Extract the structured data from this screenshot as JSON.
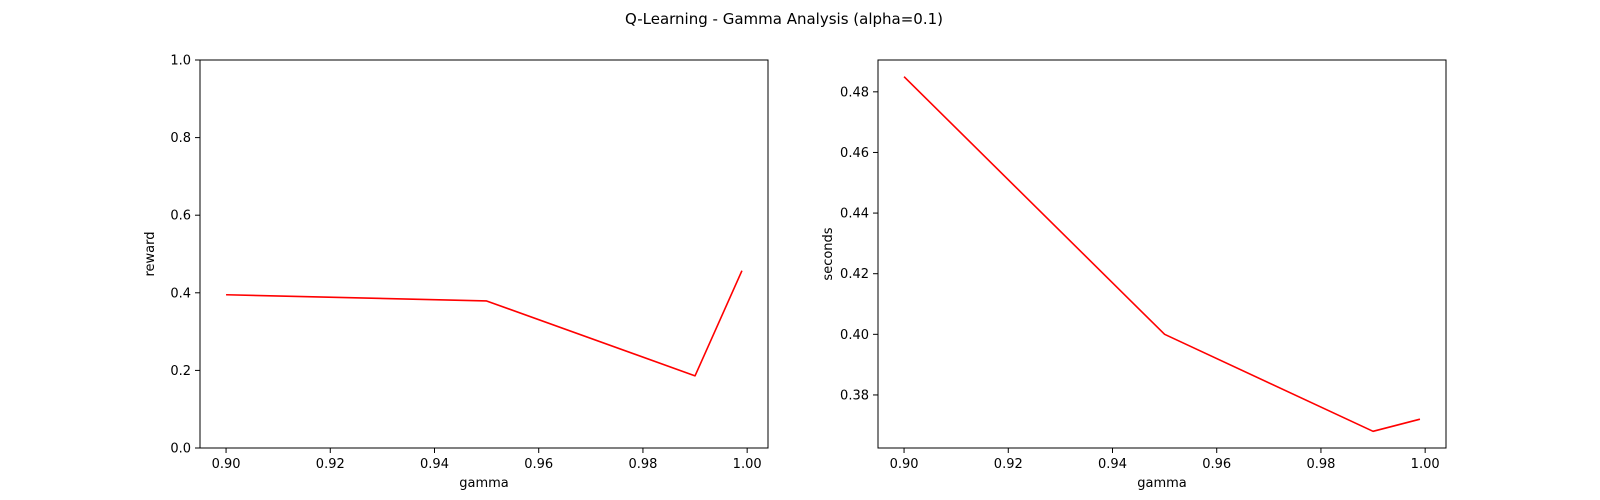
{
  "figure": {
    "title": "Q-Learning - Gamma Analysis (alpha=0.1)"
  },
  "chart_data": [
    {
      "type": "line",
      "title": "",
      "xlabel": "gamma",
      "ylabel": "reward",
      "xlim": [
        0.895,
        1.004
      ],
      "ylim": [
        0.0,
        1.0
      ],
      "xticks": [
        0.9,
        0.92,
        0.94,
        0.96,
        0.98,
        1.0
      ],
      "yticks": [
        0.0,
        0.2,
        0.4,
        0.6,
        0.8,
        1.0
      ],
      "xtick_decimals": 2,
      "ytick_decimals": 1,
      "grid": false,
      "series": [
        {
          "color": "#ff0000",
          "x": [
            0.9,
            0.95,
            0.99,
            0.999
          ],
          "y": [
            0.395,
            0.379,
            0.186,
            0.457
          ]
        }
      ]
    },
    {
      "type": "line",
      "title": "",
      "xlabel": "gamma",
      "ylabel": "seconds",
      "xlim": [
        0.895,
        1.004
      ],
      "ylim": [
        0.3625,
        0.4905
      ],
      "xticks": [
        0.9,
        0.92,
        0.94,
        0.96,
        0.98,
        1.0
      ],
      "yticks": [
        0.38,
        0.4,
        0.42,
        0.44,
        0.46,
        0.48
      ],
      "xtick_decimals": 2,
      "ytick_decimals": 2,
      "grid": false,
      "series": [
        {
          "color": "#ff0000",
          "x": [
            0.9,
            0.95,
            0.99,
            0.999
          ],
          "y": [
            0.485,
            0.4,
            0.368,
            0.372
          ]
        }
      ]
    }
  ]
}
